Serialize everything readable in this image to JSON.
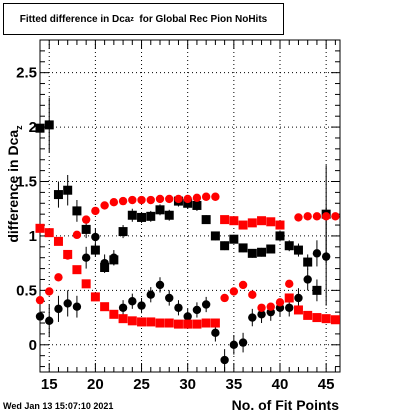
{
  "title": {
    "main": "Fitted difference in Dca",
    "sub": "z",
    "rest": "  for Global Rec Pion NoHits"
  },
  "timestamp": "Wed Jan 13 15:07:10 2021",
  "chart_data": {
    "type": "scatter",
    "title": "Fitted difference in Dca_z for Global Rec Pion NoHits",
    "xlabel": "No. of Fit Points",
    "ylabel_main": "difference in Dca",
    "ylabel_sub": "z",
    "xlim": [
      14,
      46.5
    ],
    "ylim": [
      -0.25,
      2.8
    ],
    "x_ticks": [
      15,
      20,
      25,
      30,
      35,
      40,
      45
    ],
    "y_ticks": [
      0,
      0.5,
      1,
      1.5,
      2,
      2.5
    ],
    "y_tick_labels": [
      "0",
      "0.5",
      "1",
      "1.5",
      "2",
      "2.5"
    ],
    "grid": true,
    "series": [
      {
        "marker": "square",
        "color": "#000000",
        "points": [
          {
            "x": 14,
            "y": 1.99,
            "err": 0.25
          },
          {
            "x": 15,
            "y": 2.02,
            "err": 0.25
          },
          {
            "x": 16,
            "y": 1.38,
            "err": 0.12
          },
          {
            "x": 17,
            "y": 1.42,
            "err": 0.14
          },
          {
            "x": 18,
            "y": 1.23,
            "err": 0.1
          },
          {
            "x": 19,
            "y": 1.06,
            "err": 0.08
          },
          {
            "x": 20,
            "y": 0.87,
            "err": 0.06
          },
          {
            "x": 21,
            "y": 0.71,
            "err": 0.05
          },
          {
            "x": 22,
            "y": 0.78,
            "err": 0.05
          },
          {
            "x": 23,
            "y": 1.04,
            "err": 0.06
          },
          {
            "x": 24,
            "y": 1.19,
            "err": 0.06
          },
          {
            "x": 25,
            "y": 1.17,
            "err": 0.05
          },
          {
            "x": 26,
            "y": 1.18,
            "err": 0.05
          },
          {
            "x": 27,
            "y": 1.24,
            "err": 0.05
          },
          {
            "x": 28,
            "y": 1.19,
            "err": 0.05
          },
          {
            "x": 29,
            "y": 1.32,
            "err": 0.05
          },
          {
            "x": 30,
            "y": 1.3,
            "err": 0.05
          },
          {
            "x": 31,
            "y": 1.28,
            "err": 0.05
          },
          {
            "x": 32,
            "y": 1.15,
            "err": 0.04
          },
          {
            "x": 33,
            "y": 1.0,
            "err": 0.04
          },
          {
            "x": 34,
            "y": 0.91,
            "err": 0.04
          },
          {
            "x": 35,
            "y": 0.97,
            "err": 0.04
          },
          {
            "x": 36,
            "y": 0.89,
            "err": 0.04
          },
          {
            "x": 37,
            "y": 0.84,
            "err": 0.04
          },
          {
            "x": 38,
            "y": 0.85,
            "err": 0.04
          },
          {
            "x": 39,
            "y": 0.88,
            "err": 0.04
          },
          {
            "x": 40,
            "y": 1.0,
            "err": 0.05
          },
          {
            "x": 41,
            "y": 0.91,
            "err": 0.05
          },
          {
            "x": 42,
            "y": 0.87,
            "err": 0.06
          },
          {
            "x": 43,
            "y": 0.76,
            "err": 0.07
          },
          {
            "x": 44,
            "y": 0.5,
            "err": 0.1
          },
          {
            "x": 45,
            "y": 1.2,
            "err": 0.45
          }
        ]
      },
      {
        "marker": "circle",
        "color": "#000000",
        "points": [
          {
            "x": 14,
            "y": 0.26,
            "err": 0.15
          },
          {
            "x": 15,
            "y": 0.22,
            "err": 0.15
          },
          {
            "x": 16,
            "y": 0.33,
            "err": 0.12
          },
          {
            "x": 17,
            "y": 0.38,
            "err": 0.12
          },
          {
            "x": 18,
            "y": 0.35,
            "err": 0.1
          },
          {
            "x": 19,
            "y": 0.8,
            "err": 0.1
          },
          {
            "x": 20,
            "y": 0.99,
            "err": 0.08
          },
          {
            "x": 21,
            "y": 0.75,
            "err": 0.08
          },
          {
            "x": 22,
            "y": 0.8,
            "err": 0.07
          },
          {
            "x": 23,
            "y": 0.34,
            "err": 0.07
          },
          {
            "x": 24,
            "y": 0.4,
            "err": 0.07
          },
          {
            "x": 25,
            "y": 0.36,
            "err": 0.07
          },
          {
            "x": 26,
            "y": 0.46,
            "err": 0.07
          },
          {
            "x": 27,
            "y": 0.55,
            "err": 0.07
          },
          {
            "x": 28,
            "y": 0.43,
            "err": 0.07
          },
          {
            "x": 29,
            "y": 0.34,
            "err": 0.07
          },
          {
            "x": 30,
            "y": 0.26,
            "err": 0.07
          },
          {
            "x": 31,
            "y": 0.32,
            "err": 0.07
          },
          {
            "x": 32,
            "y": 0.37,
            "err": 0.07
          },
          {
            "x": 33,
            "y": 0.11,
            "err": 0.08
          },
          {
            "x": 34,
            "y": -0.14,
            "err": 0.1
          },
          {
            "x": 35,
            "y": 0.0,
            "err": 0.09
          },
          {
            "x": 36,
            "y": 0.02,
            "err": 0.09
          },
          {
            "x": 37,
            "y": 0.25,
            "err": 0.08
          },
          {
            "x": 38,
            "y": 0.28,
            "err": 0.08
          },
          {
            "x": 39,
            "y": 0.3,
            "err": 0.08
          },
          {
            "x": 40,
            "y": 0.34,
            "err": 0.08
          },
          {
            "x": 41,
            "y": 0.34,
            "err": 0.08
          },
          {
            "x": 42,
            "y": 0.43,
            "err": 0.09
          },
          {
            "x": 43,
            "y": 0.6,
            "err": 0.1
          },
          {
            "x": 44,
            "y": 0.84,
            "err": 0.12
          },
          {
            "x": 45,
            "y": 0.81,
            "err": 0.45
          }
        ]
      },
      {
        "marker": "circle",
        "color": "#ff0000",
        "points": [
          {
            "x": 14,
            "y": 0.41
          },
          {
            "x": 15,
            "y": 0.49
          },
          {
            "x": 16,
            "y": 0.62
          },
          {
            "x": 17,
            "y": 0.82
          },
          {
            "x": 18,
            "y": 1.01
          },
          {
            "x": 19,
            "y": 1.15
          },
          {
            "x": 20,
            "y": 1.23
          },
          {
            "x": 21,
            "y": 1.28
          },
          {
            "x": 22,
            "y": 1.31
          },
          {
            "x": 23,
            "y": 1.32
          },
          {
            "x": 24,
            "y": 1.33
          },
          {
            "x": 25,
            "y": 1.33
          },
          {
            "x": 26,
            "y": 1.33
          },
          {
            "x": 27,
            "y": 1.34
          },
          {
            "x": 28,
            "y": 1.34
          },
          {
            "x": 29,
            "y": 1.34
          },
          {
            "x": 30,
            "y": 1.34
          },
          {
            "x": 31,
            "y": 1.35
          },
          {
            "x": 32,
            "y": 1.36
          },
          {
            "x": 33,
            "y": 1.36
          },
          {
            "x": 34,
            "y": 0.43
          },
          {
            "x": 35,
            "y": 0.49
          },
          {
            "x": 36,
            "y": 0.55
          },
          {
            "x": 37,
            "y": 0.46
          },
          {
            "x": 38,
            "y": 0.34
          },
          {
            "x": 39,
            "y": 0.35
          },
          {
            "x": 40,
            "y": 0.39
          },
          {
            "x": 41,
            "y": 0.56
          },
          {
            "x": 42,
            "y": 1.17
          },
          {
            "x": 43,
            "y": 1.18
          },
          {
            "x": 44,
            "y": 1.18
          },
          {
            "x": 45,
            "y": 1.18
          },
          {
            "x": 46,
            "y": 1.18
          }
        ]
      },
      {
        "marker": "square",
        "color": "#ff0000",
        "points": [
          {
            "x": 14,
            "y": 1.07
          },
          {
            "x": 15,
            "y": 1.03
          },
          {
            "x": 16,
            "y": 0.95
          },
          {
            "x": 17,
            "y": 0.83
          },
          {
            "x": 18,
            "y": 0.69
          },
          {
            "x": 19,
            "y": 0.56
          },
          {
            "x": 20,
            "y": 0.44
          },
          {
            "x": 21,
            "y": 0.35
          },
          {
            "x": 22,
            "y": 0.28
          },
          {
            "x": 23,
            "y": 0.24
          },
          {
            "x": 24,
            "y": 0.22
          },
          {
            "x": 25,
            "y": 0.21
          },
          {
            "x": 26,
            "y": 0.21
          },
          {
            "x": 27,
            "y": 0.2
          },
          {
            "x": 28,
            "y": 0.2
          },
          {
            "x": 29,
            "y": 0.19
          },
          {
            "x": 30,
            "y": 0.19
          },
          {
            "x": 31,
            "y": 0.19
          },
          {
            "x": 32,
            "y": 0.2
          },
          {
            "x": 33,
            "y": 0.2
          },
          {
            "x": 34,
            "y": 1.15
          },
          {
            "x": 35,
            "y": 1.14
          },
          {
            "x": 36,
            "y": 1.1
          },
          {
            "x": 37,
            "y": 1.12
          },
          {
            "x": 38,
            "y": 1.14
          },
          {
            "x": 39,
            "y": 1.13
          },
          {
            "x": 40,
            "y": 1.1
          },
          {
            "x": 41,
            "y": 0.43
          },
          {
            "x": 42,
            "y": 0.32
          },
          {
            "x": 43,
            "y": 0.27
          },
          {
            "x": 44,
            "y": 0.25
          },
          {
            "x": 45,
            "y": 0.24
          },
          {
            "x": 46,
            "y": 0.23
          }
        ]
      }
    ]
  }
}
